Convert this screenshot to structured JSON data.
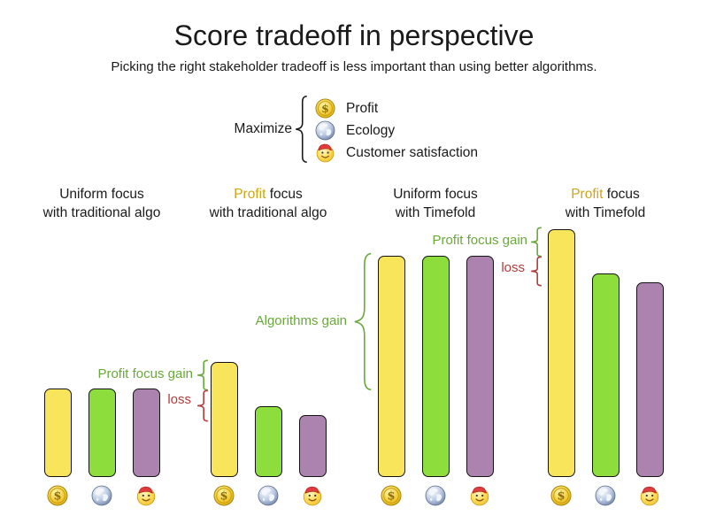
{
  "title": "Score tradeoff in perspective",
  "subtitle": "Picking the right stakeholder tradeoff is less important than using better algorithms.",
  "legend": {
    "label": "Maximize",
    "items": [
      {
        "icon": "coin",
        "label": "Profit"
      },
      {
        "icon": "globe",
        "label": "Ecology"
      },
      {
        "icon": "smiley",
        "label": "Customer satisfaction"
      }
    ]
  },
  "group_labels": [
    {
      "line1_lead": "Uniform",
      "line1_tail": " focus",
      "line2": "with traditional algo",
      "lead_color": "#1a1a1a"
    },
    {
      "line1_lead": "Profit",
      "line1_tail": " focus",
      "line2": "with traditional algo",
      "lead_color": "#cda712"
    },
    {
      "line1_lead": "Uniform",
      "line1_tail": " focus",
      "line2": "with Timefold",
      "lead_color": "#1a1a1a"
    },
    {
      "line1_lead": "Profit",
      "line1_tail": " focus",
      "line2": "with Timefold",
      "lead_color": "#cda712"
    }
  ],
  "annotations": {
    "group2_gain": {
      "text": "Profit focus gain",
      "color": "#69a83a"
    },
    "group2_loss": {
      "text": "loss",
      "color": "#b23c3c"
    },
    "algorithms_gain": {
      "text": "Algorithms gain",
      "color": "#69a83a"
    },
    "group4_gain": {
      "text": "Profit focus gain",
      "color": "#69a83a"
    },
    "group4_loss": {
      "text": "loss",
      "color": "#b23c3c"
    }
  },
  "colors": {
    "bar_profit": "#f8e55b",
    "bar_ecology": "#8ddd3d",
    "bar_customer": "#ab83ae",
    "profit_word_gold": "#cda712",
    "gain_green": "#69a83a",
    "loss_red": "#b23c3c",
    "brace_black": "#1a1a1a"
  },
  "chart_data": {
    "type": "bar",
    "title": "Score tradeoff in perspective",
    "subtitle": "Picking the right stakeholder tradeoff is less important than using better algorithms.",
    "groups": [
      "Uniform focus with traditional algo",
      "Profit focus with traditional algo",
      "Uniform focus with Timefold",
      "Profit focus with Timefold"
    ],
    "series": [
      {
        "name": "Profit",
        "icon": "coin",
        "color": "#f8e55b",
        "values": [
          100,
          130,
          250,
          280
        ]
      },
      {
        "name": "Ecology",
        "icon": "globe",
        "color": "#8ddd3d",
        "values": [
          100,
          80,
          250,
          230
        ]
      },
      {
        "name": "Customer satisfaction",
        "icon": "smiley",
        "color": "#ab83ae",
        "values": [
          100,
          70,
          250,
          220
        ]
      }
    ],
    "value_axis": "relative score (no numeric axis shown)",
    "legend_position": "top-center, brace labelled Maximize",
    "grid": false,
    "annotations": [
      {
        "text": "Profit focus gain",
        "applies_to": "Profit focus with traditional algo",
        "range": [
          100,
          130
        ],
        "color": "#69a83a"
      },
      {
        "text": "loss",
        "applies_to": "Profit focus with traditional algo",
        "range": [
          70,
          100
        ],
        "color": "#b23c3c"
      },
      {
        "text": "Algorithms gain",
        "applies_to": "Uniform focus with Timefold",
        "range": [
          100,
          250
        ],
        "color": "#69a83a"
      },
      {
        "text": "Profit focus gain",
        "applies_to": "Profit focus with Timefold",
        "range": [
          250,
          280
        ],
        "color": "#69a83a"
      },
      {
        "text": "loss",
        "applies_to": "Profit focus with Timefold",
        "range": [
          220,
          250
        ],
        "color": "#b23c3c"
      }
    ]
  }
}
